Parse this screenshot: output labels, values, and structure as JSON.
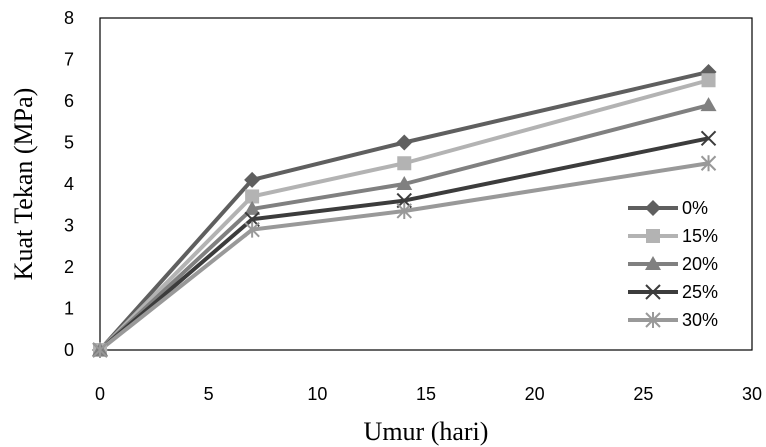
{
  "chart_data": {
    "type": "line",
    "title": "",
    "xlabel": "Umur (hari)",
    "ylabel": "Kuat Tekan (MPa)",
    "xlim": [
      0,
      30
    ],
    "ylim": [
      0,
      8
    ],
    "xticks": [
      "0",
      "5",
      "10",
      "15",
      "20",
      "25",
      "30"
    ],
    "yticks": [
      "0",
      "1",
      "2",
      "3",
      "4",
      "5",
      "6",
      "7",
      "8"
    ],
    "grid": false,
    "legend_position": "right",
    "x": [
      0,
      7,
      14,
      28
    ],
    "series": [
      {
        "name": "0%",
        "values": [
          0,
          4.1,
          5.0,
          6.7
        ],
        "marker": "diamond",
        "color": "#5f5f5f"
      },
      {
        "name": "15%",
        "values": [
          0,
          3.7,
          4.5,
          6.5
        ],
        "marker": "square",
        "color": "#b3b3b3"
      },
      {
        "name": "20%",
        "values": [
          0,
          3.4,
          4.0,
          5.9
        ],
        "marker": "triangle",
        "color": "#808080"
      },
      {
        "name": "25%",
        "values": [
          0,
          3.15,
          3.6,
          5.1
        ],
        "marker": "x",
        "color": "#3c3c3c"
      },
      {
        "name": "30%",
        "values": [
          0,
          2.9,
          3.35,
          4.5
        ],
        "marker": "star",
        "color": "#999999"
      }
    ]
  }
}
